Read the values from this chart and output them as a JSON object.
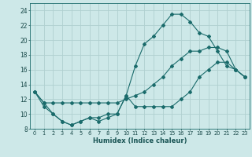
{
  "xlabel": "Humidex (Indice chaleur)",
  "background_color": "#cde8e8",
  "grid_color": "#b0d0d0",
  "line_color": "#1a6b6b",
  "xlim": [
    -0.5,
    23.5
  ],
  "ylim": [
    8,
    25
  ],
  "xticks": [
    0,
    1,
    2,
    3,
    4,
    5,
    6,
    7,
    8,
    9,
    10,
    11,
    12,
    13,
    14,
    15,
    16,
    17,
    18,
    19,
    20,
    21,
    22,
    23
  ],
  "yticks": [
    8,
    10,
    12,
    14,
    16,
    18,
    20,
    22,
    24
  ],
  "series": [
    {
      "x": [
        0,
        1,
        2,
        3,
        4,
        5,
        6,
        7,
        8,
        9,
        10,
        11,
        12,
        13,
        14,
        15,
        16,
        17,
        18,
        19,
        20,
        21,
        22,
        23
      ],
      "y": [
        13,
        11.5,
        11.5,
        11.5,
        11.5,
        11.5,
        11.5,
        11.5,
        11.5,
        11.5,
        12,
        12.5,
        13,
        14,
        15,
        16.5,
        17.5,
        18.5,
        18.5,
        19,
        19,
        18.5,
        16,
        15
      ]
    },
    {
      "x": [
        0,
        1,
        2,
        3,
        4,
        5,
        6,
        7,
        8,
        9,
        10,
        11,
        12,
        13,
        14,
        15,
        16,
        17,
        18,
        19,
        20,
        21,
        22,
        23
      ],
      "y": [
        13,
        11,
        10,
        9,
        8.5,
        9,
        9.5,
        9,
        9.5,
        10,
        12.5,
        11,
        11,
        11,
        11,
        11,
        12,
        13,
        15,
        16,
        17,
        17,
        16,
        15
      ]
    },
    {
      "x": [
        0,
        1,
        2,
        3,
        4,
        5,
        6,
        7,
        8,
        9,
        10,
        11,
        12,
        13,
        14,
        15,
        16,
        17,
        18,
        19,
        20,
        21,
        22,
        23
      ],
      "y": [
        13,
        11.5,
        10,
        9,
        8.5,
        9,
        9.5,
        9.5,
        10,
        10,
        12.5,
        16.5,
        19.5,
        20.5,
        22,
        23.5,
        23.5,
        22.5,
        21,
        20.5,
        18.5,
        16.5,
        16,
        15
      ]
    }
  ]
}
